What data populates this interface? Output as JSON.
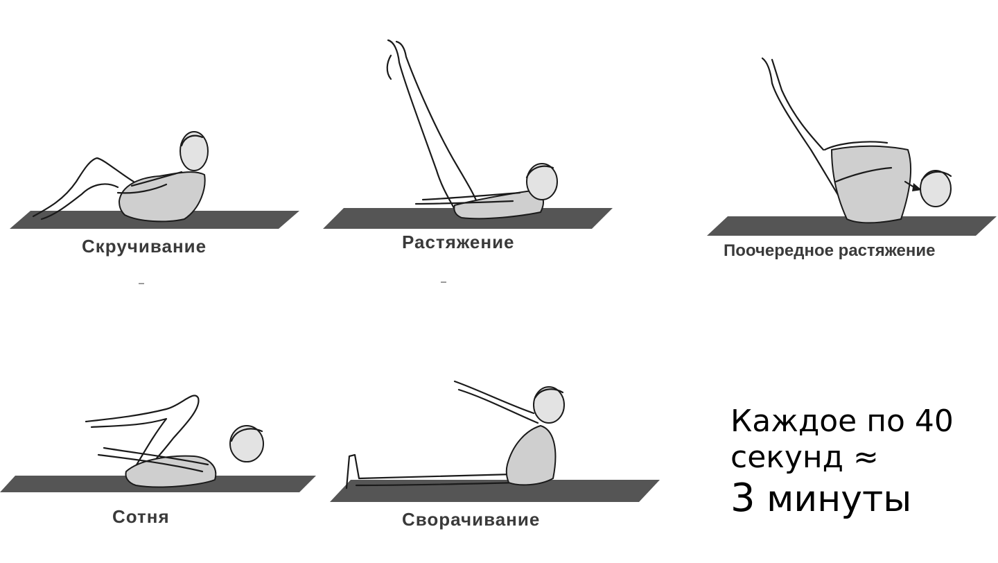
{
  "exercises": [
    {
      "id": "crunch",
      "label": "Скручивание"
    },
    {
      "id": "stretch",
      "label": "Растяжение"
    },
    {
      "id": "alternate",
      "label": "Поочередное растяжение"
    },
    {
      "id": "hundred",
      "label": "Сотня"
    },
    {
      "id": "rollup",
      "label": "Сворачивание"
    }
  ],
  "note": {
    "line1": "Каждое по 40",
    "line2": "секунд ≈",
    "line3_number": "3",
    "line3_unit": "минуты"
  },
  "colors": {
    "mat": "#555555",
    "suit": "#cfcfcf",
    "caption": "#3a3a3a"
  }
}
